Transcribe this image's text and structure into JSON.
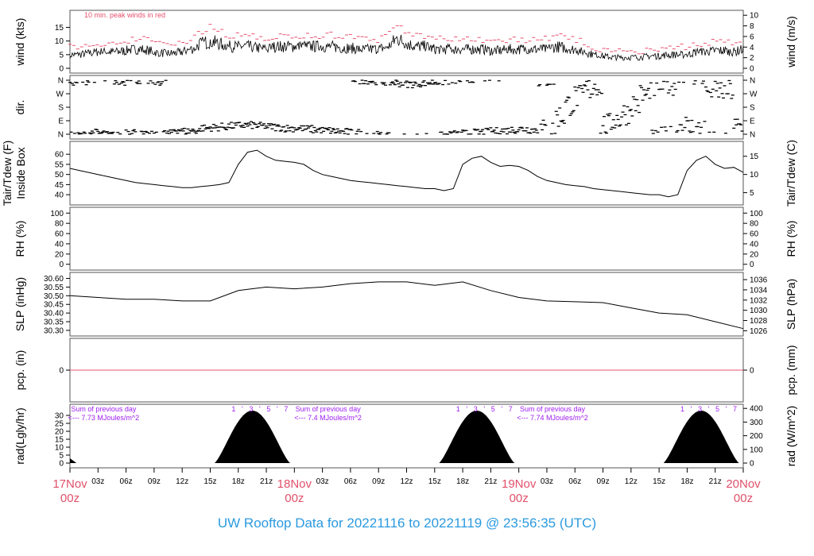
{
  "title": "UW Rooftop Data for 20221116  to  20221119 @ 23:56:35  (UTC)",
  "colors": {
    "peak": "#e8506e",
    "uv": "#a020f0",
    "day": "#e0506a",
    "title": "#2b9ae0",
    "line": "#000000"
  },
  "chart_data": [
    {
      "id": "wind",
      "type": "line",
      "ylabel": "wind (kts)",
      "ylabel_right": "wind (m/s)",
      "ylim": [
        0,
        19.5
      ],
      "yticks": [
        0,
        5,
        10,
        15
      ],
      "yticks_right": [
        0,
        2,
        4,
        6,
        8,
        10
      ],
      "right_scale": 0.5144,
      "annotation": "10 min. peak winds in red",
      "x_hours_step": 1,
      "mean": [
        5,
        5,
        5.5,
        6,
        6,
        6,
        6.5,
        7,
        7,
        6,
        5.5,
        5.5,
        6,
        7,
        9,
        10,
        9,
        8,
        8,
        8,
        7.5,
        7,
        8,
        8,
        8,
        8,
        8,
        8,
        8,
        7.5,
        7.5,
        7,
        7,
        7,
        8,
        11,
        9,
        8,
        8,
        7,
        7,
        7,
        7,
        7,
        7,
        6.5,
        6.5,
        7,
        7,
        7,
        7,
        7,
        8,
        7.5,
        7,
        6,
        5,
        4.5,
        4,
        4,
        4,
        4,
        4.5,
        4.5,
        5,
        5,
        5,
        6,
        6,
        6.5,
        6.5,
        6,
        7
      ]
    },
    {
      "id": "dir",
      "type": "scatter",
      "ylabel": "dir.",
      "ylim": [
        0,
        360
      ],
      "yticks": [
        0,
        90,
        180,
        270,
        360
      ],
      "ytick_labels": [
        "N",
        "E",
        "S",
        "W",
        "N"
      ],
      "dominant_deg": [
        350,
        355,
        10,
        5,
        355,
        350,
        20,
        360,
        355,
        350,
        5,
        30,
        20,
        25,
        40,
        45,
        50,
        55,
        60,
        60,
        55,
        50,
        45,
        40,
        40,
        35,
        30,
        25,
        20,
        15,
        10,
        360,
        355,
        350,
        345,
        340,
        335,
        340,
        345,
        350,
        355,
        360,
        5,
        10,
        15,
        20,
        25,
        30,
        35,
        30,
        25,
        20,
        120,
        200,
        250,
        300,
        330,
        60,
        100,
        140,
        200,
        260,
        310,
        330,
        340,
        60,
        40,
        30,
        300,
        290,
        290,
        45,
        300
      ]
    },
    {
      "id": "temp",
      "type": "line",
      "ylabel": "Tair/Tdew (F)\nInside Box",
      "ylabel_right": "Tair/Tdew (C)",
      "ylim": [
        37.3,
        64
      ],
      "yticks": [
        40,
        45,
        50,
        55,
        60
      ],
      "yticks_right_c": [
        5,
        10,
        15
      ],
      "values": [
        53,
        52,
        51,
        50,
        49,
        48,
        47,
        46,
        45.5,
        45,
        44.5,
        44,
        43.5,
        43.5,
        44,
        44.5,
        45,
        46,
        55,
        61,
        62,
        59,
        57,
        56.5,
        56,
        55,
        52,
        50,
        49,
        48,
        47,
        46.5,
        46,
        45.5,
        45,
        44.5,
        44,
        43.5,
        43,
        43,
        42,
        43,
        55,
        58,
        59,
        56,
        54,
        54.5,
        54,
        52,
        49,
        47,
        46,
        45,
        44.5,
        44,
        43,
        42.5,
        42,
        41.5,
        41,
        40.5,
        40,
        40,
        39,
        40,
        52,
        57,
        59,
        55,
        53,
        53.5,
        51
      ]
    },
    {
      "id": "rh",
      "type": "line",
      "ylabel": "RH (%)",
      "ylabel_right": "RH (%)",
      "ylim": [
        -2,
        102
      ],
      "yticks": [
        0,
        20,
        40,
        60,
        80,
        100
      ],
      "values": []
    },
    {
      "id": "slp",
      "type": "line",
      "ylabel": "SLP (inHg)",
      "ylabel_right": "SLP (hPa)",
      "ylim": [
        30.295,
        30.607
      ],
      "yticks": [
        30.3,
        30.35,
        30.4,
        30.45,
        30.5,
        30.55,
        30.6
      ],
      "yticks_right_hpa": [
        1026,
        1028,
        1030,
        1032,
        1034,
        1036
      ],
      "x_hours_step": 3,
      "values": [
        30.5,
        30.49,
        30.48,
        30.48,
        30.47,
        30.47,
        30.53,
        30.55,
        30.54,
        30.55,
        30.57,
        30.58,
        30.58,
        30.56,
        30.58,
        30.53,
        30.49,
        30.47,
        30.465,
        30.46,
        30.43,
        30.4,
        30.39,
        30.35,
        30.31
      ]
    },
    {
      "id": "pcp",
      "type": "line",
      "ylabel": "pcp. (in)",
      "ylabel_right": "pcp. (mm)",
      "ylim": [
        -1,
        1
      ],
      "yticks": [
        0
      ],
      "yticks_right": [
        0
      ],
      "values_constant": 0
    },
    {
      "id": "rad",
      "type": "area",
      "ylabel": "rad(Lgly/hr)",
      "ylabel_right": "rad (W/m^2)",
      "ylim": [
        0,
        34
      ],
      "yticks": [
        0,
        5,
        10,
        15,
        20,
        25,
        30
      ],
      "yticks_right": [
        0,
        100,
        200,
        300,
        400
      ],
      "days": [
        {
          "sunrise_h": 15.5,
          "sunset_h": 23.6,
          "peak": 33,
          "peak_h": 19.5,
          "sum_label": "Sum of previous day",
          "sum_value": "<--- 7.73 MJoules/m^2"
        },
        {
          "sunrise_h": 15.5,
          "sunset_h": 23.6,
          "peak": 33,
          "peak_h": 19.5,
          "sum_label": "Sum of previous day",
          "sum_value": "<--- 7.4 MJoules/m^2"
        },
        {
          "sunrise_h": 15.5,
          "sunset_h": 23.6,
          "peak": 33,
          "peak_h": 19.5,
          "sum_label": "Sum of previous day",
          "sum_value": "<--- 7.74 MJoules/m^2"
        }
      ],
      "uv_labels": [
        "1",
        "'",
        "3",
        "'",
        "5",
        "'",
        "7"
      ]
    }
  ],
  "xaxis": {
    "hour_labels": [
      "03z",
      "06z",
      "09z",
      "12z",
      "15z",
      "18z",
      "21z"
    ],
    "day_labels": [
      [
        "17Nov",
        "00z"
      ],
      [
        "18Nov",
        "00z"
      ],
      [
        "19Nov",
        "00z"
      ],
      [
        "20Nov",
        "00z"
      ]
    ],
    "range_hours": [
      0,
      72
    ]
  }
}
